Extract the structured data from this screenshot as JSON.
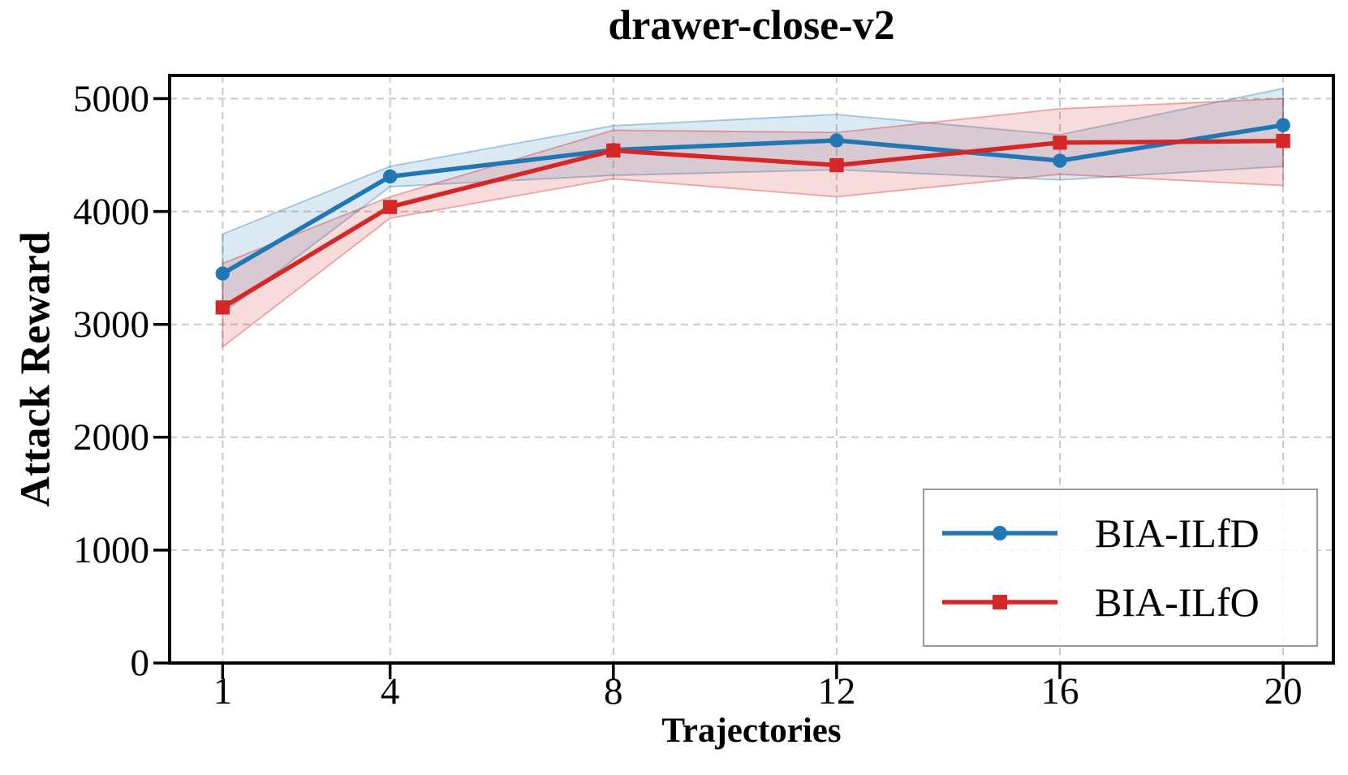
{
  "title": "drawer-close-v2",
  "chart_data": {
    "type": "line",
    "title": "drawer-close-v2",
    "xlabel": "Trajectories",
    "ylabel": "Attack Reward",
    "x": [
      1,
      4,
      8,
      12,
      16,
      20
    ],
    "x_tick_labels": [
      "1",
      "4",
      "8",
      "12",
      "16",
      "20"
    ],
    "y_ticks": [
      0,
      1000,
      2000,
      3000,
      4000,
      5000
    ],
    "xlim": [
      0.05,
      20.9
    ],
    "ylim": [
      0,
      5205
    ],
    "grid": true,
    "grid_style": "dashed",
    "grid_color": "#c9c9c9",
    "legend_position": "lower right",
    "legend_border_color": "#9a9a9a",
    "series": [
      {
        "name": "BIA-ILfD",
        "color": "#1f77b4",
        "marker": "circle",
        "values": [
          3450,
          4310,
          4545,
          4630,
          4450,
          4765
        ],
        "band_low": [
          3100,
          4220,
          4320,
          4370,
          4280,
          4400
        ],
        "band_high": [
          3800,
          4400,
          4760,
          4860,
          4680,
          5090
        ]
      },
      {
        "name": "BIA-ILfO",
        "color": "#d62728",
        "marker": "square",
        "values": [
          3150,
          4040,
          4540,
          4410,
          4610,
          4625
        ],
        "band_low": [
          2800,
          3940,
          4290,
          4130,
          4330,
          4230
        ],
        "band_high": [
          3540,
          4130,
          4720,
          4700,
          4910,
          5000
        ]
      }
    ]
  }
}
